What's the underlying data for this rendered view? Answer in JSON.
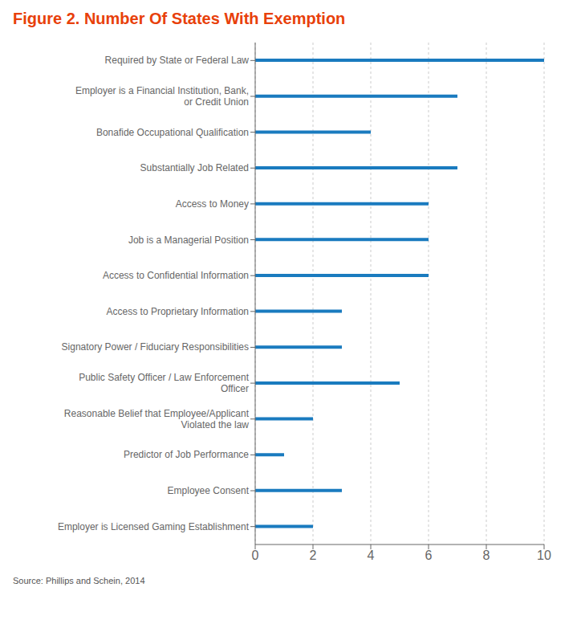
{
  "chart_data": {
    "type": "bar",
    "title": "Figure 2. Number Of States With Exemption",
    "annotations": [
      "Source: Phillips and Schein, 2014"
    ],
    "orientation": "horizontal",
    "categories": [
      "Employer is Licensed Gaming Establishment",
      "Employee Consent",
      "Predictor of Job Performance",
      "Reasonable Belief that Employee/Applicant\nViolated the law",
      "Public Safety Officer / Law Enforcement\nOfficer",
      "Signatory Power / Fiduciary Responsibilities",
      "Access to Proprietary Information",
      "Access to Confidential Information",
      "Job is a Managerial Position",
      "Access to Money",
      "Substantially Job Related",
      "Bonafide Occupational Qualification",
      "Employer is a Financial Institution, Bank,\nor Credit Union",
      "Required by State or Federal Law"
    ],
    "values": [
      2,
      3,
      1,
      2,
      5,
      3,
      3,
      6,
      6,
      6,
      7,
      4,
      7,
      10
    ],
    "color": "#1A7BBF",
    "xlim": [
      0,
      10
    ],
    "xticks": [
      0,
      2,
      4,
      6,
      8,
      10
    ],
    "grid": true
  }
}
